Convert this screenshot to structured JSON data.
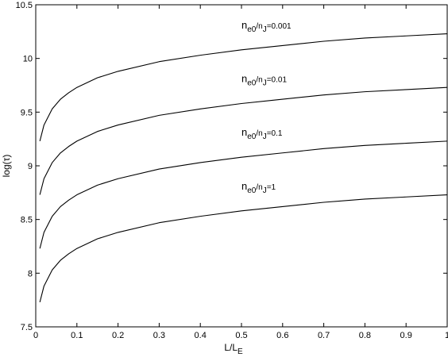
{
  "chart_data": {
    "type": "line",
    "title": "",
    "xlabel": {
      "base": "L/L",
      "sub": "E"
    },
    "ylabel": "log(τ)",
    "xlim": [
      0,
      1
    ],
    "ylim": [
      7.5,
      10.5
    ],
    "xticks": [
      "0",
      "0.1",
      "0.2",
      "0.3",
      "0.4",
      "0.5",
      "0.6",
      "0.7",
      "0.8",
      "0.9",
      "1"
    ],
    "yticks": [
      "7.5",
      "8",
      "8.5",
      "9",
      "9.5",
      "10",
      "10.5"
    ],
    "grid": false,
    "legend": "none",
    "line_color": "#000000",
    "x": [
      0.01,
      0.02,
      0.04,
      0.06,
      0.08,
      0.1,
      0.15,
      0.2,
      0.3,
      0.4,
      0.5,
      0.6,
      0.7,
      0.8,
      0.9,
      1.0
    ],
    "series": [
      {
        "label_parts": [
          "n",
          "e0",
          "/n",
          "J",
          "=0.001"
        ],
        "values": [
          9.23,
          9.38,
          9.53,
          9.62,
          9.68,
          9.73,
          9.82,
          9.88,
          9.97,
          10.03,
          10.08,
          10.12,
          10.16,
          10.19,
          10.21,
          10.23
        ]
      },
      {
        "label_parts": [
          "n",
          "e0",
          "/n",
          "J",
          "=0.01"
        ],
        "values": [
          8.73,
          8.88,
          9.03,
          9.12,
          9.18,
          9.23,
          9.32,
          9.38,
          9.47,
          9.53,
          9.58,
          9.62,
          9.66,
          9.69,
          9.71,
          9.73
        ]
      },
      {
        "label_parts": [
          "n",
          "e0",
          "/n",
          "J",
          "=0.1"
        ],
        "values": [
          8.23,
          8.38,
          8.53,
          8.62,
          8.68,
          8.73,
          8.82,
          8.88,
          8.97,
          9.03,
          9.08,
          9.12,
          9.16,
          9.19,
          9.21,
          9.23
        ]
      },
      {
        "label_parts": [
          "n",
          "e0",
          "/n",
          "J",
          "=1"
        ],
        "values": [
          7.73,
          7.88,
          8.03,
          8.12,
          8.18,
          8.23,
          8.32,
          8.38,
          8.47,
          8.53,
          8.58,
          8.62,
          8.66,
          8.69,
          8.71,
          8.73
        ]
      }
    ],
    "annotations": [
      {
        "series": 0,
        "x": 0.5,
        "y": 10.28
      },
      {
        "series": 1,
        "x": 0.5,
        "y": 9.78
      },
      {
        "series": 2,
        "x": 0.5,
        "y": 9.28
      },
      {
        "series": 3,
        "x": 0.5,
        "y": 8.78
      }
    ]
  }
}
